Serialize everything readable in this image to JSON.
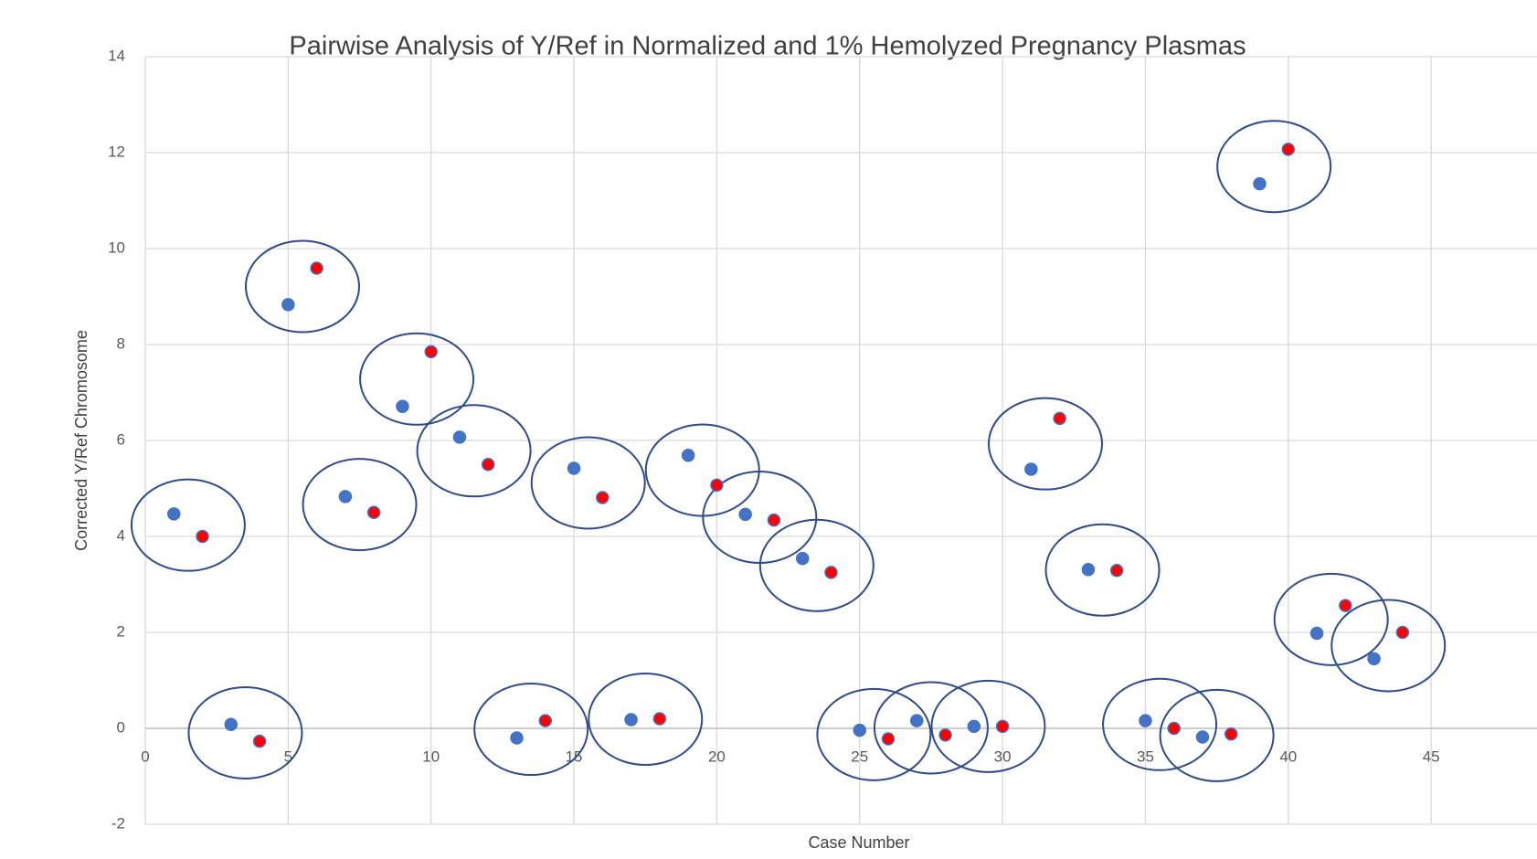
{
  "chart_data": {
    "type": "scatter",
    "title": "Pairwise Analysis of Y/Ref in Normalized and 1% Hemolyzed Pregnancy Plasmas",
    "x_label": "Case  Number",
    "y_label": "Corrected Y/Ref Chromosome",
    "xlim": [
      0,
      50
    ],
    "xticks": [
      0,
      5,
      10,
      15,
      20,
      25,
      30,
      35,
      40,
      45
    ],
    "ylim": [
      -2,
      14
    ],
    "yticks": [
      -2,
      0,
      2,
      4,
      6,
      8,
      10,
      12,
      14
    ],
    "grid": true,
    "series": [
      {
        "color": "#4472c4",
        "x": [
          1,
          3,
          5,
          7,
          9,
          11,
          13,
          15,
          17,
          19,
          21,
          23,
          25,
          27,
          29,
          31,
          33,
          35,
          37,
          39,
          41,
          43
        ],
        "values": [
          4.47,
          0.08,
          8.83,
          4.83,
          6.71,
          6.07,
          -0.2,
          5.42,
          0.18,
          5.69,
          4.46,
          3.54,
          -0.04,
          0.16,
          0.04,
          5.4,
          3.31,
          0.16,
          -0.18,
          11.35,
          1.98,
          1.45
        ]
      },
      {
        "color": "#ff0000",
        "x": [
          2,
          4,
          6,
          8,
          10,
          12,
          14,
          16,
          18,
          20,
          22,
          24,
          26,
          28,
          30,
          32,
          34,
          36,
          38,
          40,
          42,
          44
        ],
        "values": [
          4.0,
          -0.27,
          9.59,
          4.5,
          7.85,
          5.5,
          0.16,
          4.81,
          0.2,
          5.07,
          4.34,
          3.25,
          -0.22,
          -0.14,
          0.04,
          6.46,
          3.29,
          0.0,
          -0.12,
          12.07,
          2.56,
          2.0
        ]
      }
    ]
  }
}
